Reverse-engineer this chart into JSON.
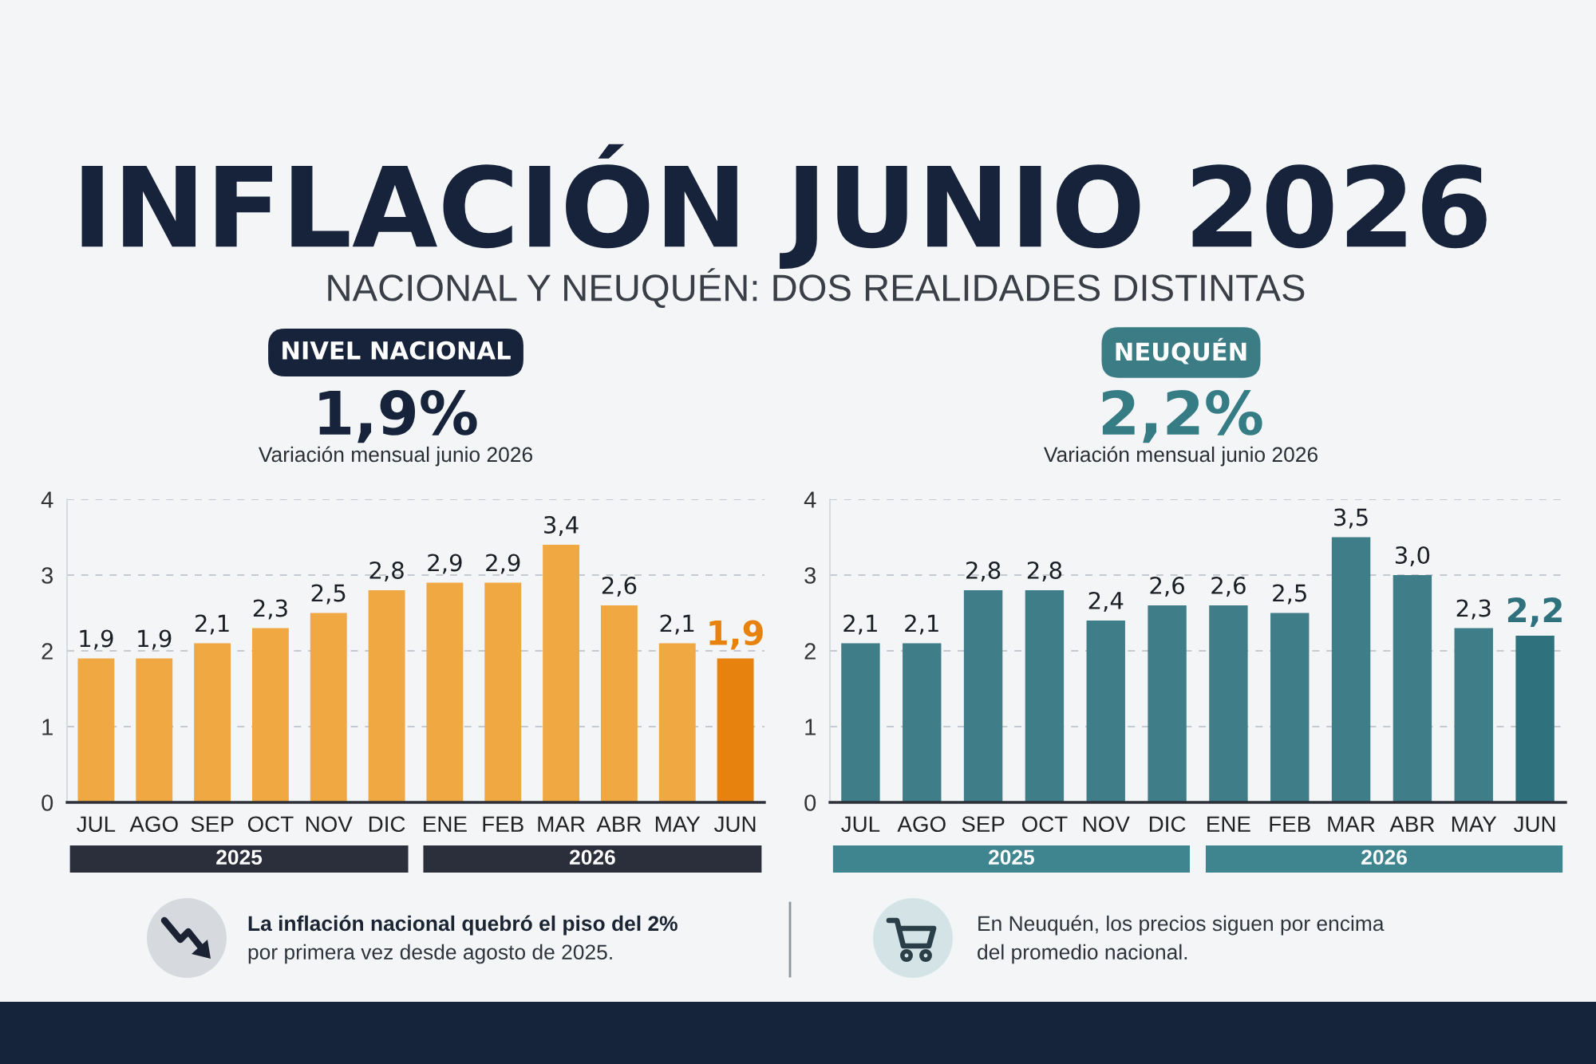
{
  "chart_data": [
    {
      "type": "other",
      "title": "INFLACIÓN JUNIO 2026",
      "subtitle": "NACIONAL Y NEUQUÉN: DOS REALIDADES DISTINTAS"
    },
    {
      "type": "bar",
      "title": "NIVEL NACIONAL",
      "categories": [
        "JUL",
        "AGO",
        "SEP",
        "OCT",
        "NOV",
        "DIC",
        "ENE",
        "FEB",
        "MAR",
        "ABR",
        "MAY",
        "JUN"
      ],
      "values": [
        1.9,
        1.9,
        2.1,
        2.3,
        2.5,
        2.8,
        2.9,
        2.9,
        3.4,
        2.6,
        2.1,
        1.9
      ],
      "colors": [
        "#f0a843",
        "#f0a843",
        "#f0a843",
        "#f0a843",
        "#f0a843",
        "#f0a843",
        "#f0a843",
        "#f0a843",
        "#f0a843",
        "#f0a843",
        "#f0a843",
        "#e8820e"
      ],
      "value_labels": [
        "1,9",
        "1,9",
        "2,1",
        "2,3",
        "2,5",
        "2,8",
        "2,9",
        "2,9",
        "3,4",
        "2,6",
        "2,1",
        "1,9"
      ],
      "ylim": [
        0,
        4
      ],
      "yticks": [
        0,
        1,
        2,
        3,
        4
      ],
      "grid": "y",
      "annotations": [
        "1,9%",
        "Variación mensual junio 2026",
        "2025",
        "2026",
        "La inflación nacional quebró el piso del 2%",
        "por primera vez desde agosto de 2025."
      ]
    },
    {
      "type": "bar",
      "title": "NEUQUÉN",
      "categories": [
        "JUL",
        "AGO",
        "SEP",
        "OCT",
        "NOV",
        "DIC",
        "ENE",
        "FEB",
        "MAR",
        "ABR",
        "MAY",
        "JUN"
      ],
      "values": [
        2.1,
        2.1,
        2.8,
        2.8,
        2.4,
        2.6,
        2.6,
        2.5,
        3.5,
        3.0,
        2.3,
        2.2
      ],
      "colors": [
        "#3f7e88",
        "#3f7e88",
        "#3f7e88",
        "#3f7e88",
        "#3f7e88",
        "#3f7e88",
        "#3f7e88",
        "#3f7e88",
        "#3f7e88",
        "#3f7e88",
        "#3f7e88",
        "#2f717c"
      ],
      "value_labels": [
        "2,1",
        "2,1",
        "2,8",
        "2,8",
        "2,4",
        "2,6",
        "2,6",
        "2,5",
        "3,5",
        "3,0",
        "2,3",
        "2,2"
      ],
      "ylim": [
        0,
        4
      ],
      "yticks": [
        0,
        1,
        2,
        3,
        4
      ],
      "grid": "y",
      "annotations": [
        "2,2%",
        "Variación mensual junio 2026",
        "2025",
        "2026",
        "En Neuquén, los precios siguen por encima",
        "del promedio nacional."
      ]
    }
  ]
}
